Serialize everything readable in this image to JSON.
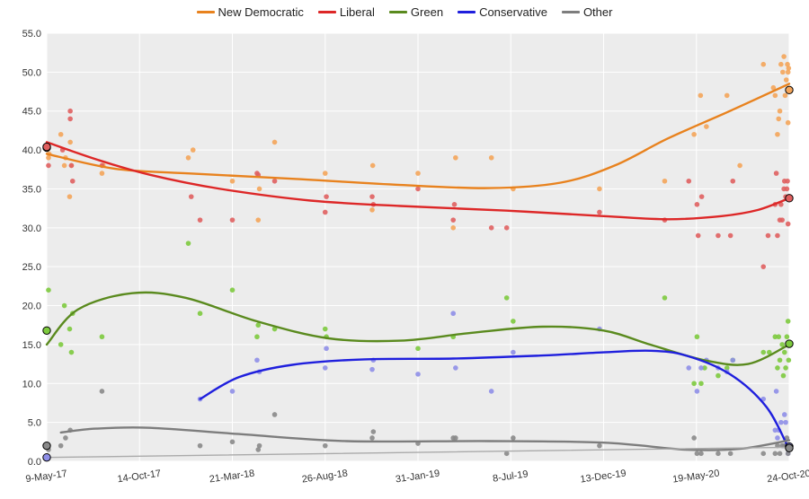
{
  "chart_data": {
    "type": "scatter",
    "title": "",
    "xlabel": "",
    "ylabel": "",
    "ylim": [
      0,
      55
    ],
    "xlim": [
      "2017-05-09",
      "2020-10-24"
    ],
    "grid": true,
    "legend_position": "top-center",
    "y_ticks": [
      "0.0",
      "5.0",
      "10.0",
      "15.0",
      "20.0",
      "25.0",
      "30.0",
      "35.0",
      "40.0",
      "45.0",
      "50.0",
      "55.0"
    ],
    "x_ticks": [
      {
        "date": "2017-05-09",
        "label": "9-May-17"
      },
      {
        "date": "2017-10-14",
        "label": "14-Oct-17"
      },
      {
        "date": "2018-03-21",
        "label": "21-Mar-18"
      },
      {
        "date": "2018-08-26",
        "label": "26-Aug-18"
      },
      {
        "date": "2019-01-31",
        "label": "31-Jan-19"
      },
      {
        "date": "2019-07-08",
        "label": "8-Jul-19"
      },
      {
        "date": "2019-12-13",
        "label": "13-Dec-19"
      },
      {
        "date": "2020-05-19",
        "label": "19-May-20"
      },
      {
        "date": "2020-10-24",
        "label": "24-Oct-20"
      }
    ],
    "series": [
      {
        "name": "New Democratic",
        "color": "#e8821e",
        "point_color": "#f4a55a",
        "election_values": [
          40.3,
          47.7
        ],
        "trend": [
          [
            "2017-05-09",
            39.5
          ],
          [
            "2017-09-01",
            37.6
          ],
          [
            "2018-01-01",
            37.0
          ],
          [
            "2018-07-01",
            36.3
          ],
          [
            "2019-01-01",
            35.5
          ],
          [
            "2019-06-01",
            35.1
          ],
          [
            "2019-10-01",
            35.8
          ],
          [
            "2020-01-01",
            38.0
          ],
          [
            "2020-04-01",
            41.5
          ],
          [
            "2020-07-15",
            45.0
          ],
          [
            "2020-10-24",
            48.5
          ]
        ],
        "points": [
          [
            "2017-05-12",
            39
          ],
          [
            "2017-05-13",
            39.5
          ],
          [
            "2017-06-02",
            42
          ],
          [
            "2017-06-08",
            38
          ],
          [
            "2017-06-10",
            39
          ],
          [
            "2017-06-18",
            41
          ],
          [
            "2017-06-17",
            34
          ],
          [
            "2017-06-20",
            38
          ],
          [
            "2017-08-11",
            37
          ],
          [
            "2017-08-13",
            38
          ],
          [
            "2018-01-05",
            39
          ],
          [
            "2018-01-13",
            40
          ],
          [
            "2018-03-21",
            36
          ],
          [
            "2018-05-04",
            31
          ],
          [
            "2018-05-06",
            35
          ],
          [
            "2018-06-01",
            41
          ],
          [
            "2018-08-26",
            37
          ],
          [
            "2018-11-15",
            38
          ],
          [
            "2018-11-14",
            32.3
          ],
          [
            "2019-01-31",
            37
          ],
          [
            "2019-04-05",
            39
          ],
          [
            "2019-04-01",
            30
          ],
          [
            "2019-06-05",
            39
          ],
          [
            "2019-07-12",
            35
          ],
          [
            "2019-12-06",
            35
          ],
          [
            "2020-03-26",
            36
          ],
          [
            "2020-05-15",
            42
          ],
          [
            "2020-05-26",
            47
          ],
          [
            "2020-06-05",
            43
          ],
          [
            "2020-07-10",
            47
          ],
          [
            "2020-08-01",
            38
          ],
          [
            "2020-09-10",
            51
          ],
          [
            "2020-09-27",
            48
          ],
          [
            "2020-09-30",
            47
          ],
          [
            "2020-10-04",
            42
          ],
          [
            "2020-10-06",
            44
          ],
          [
            "2020-10-08",
            45
          ],
          [
            "2020-10-10",
            51
          ],
          [
            "2020-10-13",
            50
          ],
          [
            "2020-10-15",
            52
          ],
          [
            "2020-10-17",
            47
          ],
          [
            "2020-10-19",
            49
          ],
          [
            "2020-10-21",
            51
          ],
          [
            "2020-10-22",
            50
          ],
          [
            "2020-10-22",
            43.5
          ],
          [
            "2020-10-23",
            50.5
          ]
        ]
      },
      {
        "name": "Liberal",
        "color": "#dd2727",
        "point_color": "#e06060",
        "election_values": [
          40.4,
          33.8
        ],
        "trend": [
          [
            "2017-05-09",
            41.0
          ],
          [
            "2017-08-01",
            38.8
          ],
          [
            "2017-11-01",
            36.8
          ],
          [
            "2018-03-01",
            35.0
          ],
          [
            "2018-08-01",
            33.5
          ],
          [
            "2019-01-01",
            32.8
          ],
          [
            "2019-07-01",
            32.2
          ],
          [
            "2019-12-13",
            31.5
          ],
          [
            "2020-04-01",
            31.1
          ],
          [
            "2020-07-01",
            31.5
          ],
          [
            "2020-09-01",
            32.3
          ],
          [
            "2020-10-24",
            33.8
          ]
        ],
        "points": [
          [
            "2017-05-12",
            38
          ],
          [
            "2017-06-05",
            40
          ],
          [
            "2017-06-18",
            44
          ],
          [
            "2017-06-18",
            45
          ],
          [
            "2017-06-20",
            38
          ],
          [
            "2017-06-22",
            36
          ],
          [
            "2017-08-11",
            38
          ],
          [
            "2018-01-10",
            34
          ],
          [
            "2018-01-25",
            31
          ],
          [
            "2018-03-21",
            31
          ],
          [
            "2018-05-02",
            37
          ],
          [
            "2018-05-04",
            36.8
          ],
          [
            "2018-06-01",
            36
          ],
          [
            "2018-08-26",
            32
          ],
          [
            "2018-08-28",
            34
          ],
          [
            "2018-11-14",
            34
          ],
          [
            "2018-11-16",
            33
          ],
          [
            "2019-01-31",
            35
          ],
          [
            "2019-04-01",
            31
          ],
          [
            "2019-04-03",
            33
          ],
          [
            "2019-06-05",
            30
          ],
          [
            "2019-07-01",
            30
          ],
          [
            "2019-12-06",
            32
          ],
          [
            "2020-03-26",
            31
          ],
          [
            "2020-05-06",
            36
          ],
          [
            "2020-05-20",
            33
          ],
          [
            "2020-05-22",
            29
          ],
          [
            "2020-05-28",
            34
          ],
          [
            "2020-06-25",
            29
          ],
          [
            "2020-07-16",
            29
          ],
          [
            "2020-07-20",
            36
          ],
          [
            "2020-09-10",
            25
          ],
          [
            "2020-09-18",
            29
          ],
          [
            "2020-09-30",
            33
          ],
          [
            "2020-10-02",
            37
          ],
          [
            "2020-10-04",
            29
          ],
          [
            "2020-10-08",
            31
          ],
          [
            "2020-10-10",
            33
          ],
          [
            "2020-10-12",
            31
          ],
          [
            "2020-10-15",
            35
          ],
          [
            "2020-10-16",
            36
          ],
          [
            "2020-10-18",
            34
          ],
          [
            "2020-10-20",
            35
          ],
          [
            "2020-10-21",
            36
          ],
          [
            "2020-10-22",
            30.5
          ]
        ]
      },
      {
        "name": "Green",
        "color": "#5a8a1e",
        "point_color": "#7dca3e",
        "election_values": [
          16.8,
          15.1
        ],
        "trend": [
          [
            "2017-05-09",
            15.0
          ],
          [
            "2017-07-01",
            19.5
          ],
          [
            "2017-10-01",
            21.6
          ],
          [
            "2018-01-01",
            21.0
          ],
          [
            "2018-05-01",
            18.0
          ],
          [
            "2018-09-01",
            15.8
          ],
          [
            "2019-01-01",
            15.5
          ],
          [
            "2019-05-01",
            16.5
          ],
          [
            "2019-09-01",
            17.3
          ],
          [
            "2019-12-13",
            16.8
          ],
          [
            "2020-03-01",
            15.0
          ],
          [
            "2020-06-01",
            13.0
          ],
          [
            "2020-08-15",
            12.5
          ],
          [
            "2020-10-24",
            15.0
          ]
        ],
        "points": [
          [
            "2017-05-12",
            22
          ],
          [
            "2017-06-02",
            15
          ],
          [
            "2017-06-08",
            20
          ],
          [
            "2017-06-17",
            17
          ],
          [
            "2017-06-20",
            14
          ],
          [
            "2017-06-22",
            19
          ],
          [
            "2017-08-11",
            16
          ],
          [
            "2018-01-05",
            28
          ],
          [
            "2018-01-25",
            19
          ],
          [
            "2018-03-21",
            22
          ],
          [
            "2018-05-02",
            16
          ],
          [
            "2018-05-04",
            17.5
          ],
          [
            "2018-06-01",
            17
          ],
          [
            "2018-08-26",
            17
          ],
          [
            "2018-08-28",
            16
          ],
          [
            "2019-01-31",
            14.5
          ],
          [
            "2019-04-01",
            16
          ],
          [
            "2019-07-01",
            21
          ],
          [
            "2019-07-12",
            18
          ],
          [
            "2020-03-26",
            21
          ],
          [
            "2020-05-15",
            10
          ],
          [
            "2020-05-20",
            16
          ],
          [
            "2020-05-27",
            10
          ],
          [
            "2020-06-02",
            12
          ],
          [
            "2020-06-25",
            11
          ],
          [
            "2020-07-10",
            12
          ],
          [
            "2020-07-20",
            13
          ],
          [
            "2020-09-10",
            14
          ],
          [
            "2020-09-20",
            14
          ],
          [
            "2020-09-30",
            16
          ],
          [
            "2020-10-04",
            12
          ],
          [
            "2020-10-06",
            16
          ],
          [
            "2020-10-08",
            13
          ],
          [
            "2020-10-12",
            15
          ],
          [
            "2020-10-14",
            11
          ],
          [
            "2020-10-16",
            14
          ],
          [
            "2020-10-18",
            12
          ],
          [
            "2020-10-20",
            16
          ],
          [
            "2020-10-22",
            18
          ],
          [
            "2020-10-23",
            13
          ]
        ]
      },
      {
        "name": "Conservative",
        "color": "#1f1fdd",
        "point_color": "#8f8fe8",
        "election_values": [
          0.5,
          1.9
        ],
        "trend": [
          [
            "2018-01-25",
            8.0
          ],
          [
            "2018-04-01",
            10.8
          ],
          [
            "2018-07-01",
            12.4
          ],
          [
            "2018-11-01",
            13.1
          ],
          [
            "2019-04-01",
            13.2
          ],
          [
            "2019-09-01",
            13.6
          ],
          [
            "2019-12-13",
            14.0
          ],
          [
            "2020-03-01",
            14.2
          ],
          [
            "2020-05-01",
            13.6
          ],
          [
            "2020-07-15",
            11.2
          ],
          [
            "2020-09-15",
            7.0
          ],
          [
            "2020-10-24",
            1.5
          ]
        ],
        "points": [
          [
            "2018-01-25",
            8
          ],
          [
            "2018-03-21",
            9
          ],
          [
            "2018-05-02",
            13
          ],
          [
            "2018-05-06",
            11.5
          ],
          [
            "2018-08-26",
            12
          ],
          [
            "2018-08-28",
            14.5
          ],
          [
            "2018-11-14",
            11.8
          ],
          [
            "2018-11-16",
            13
          ],
          [
            "2019-01-31",
            11.2
          ],
          [
            "2019-04-01",
            19
          ],
          [
            "2019-04-05",
            12
          ],
          [
            "2019-06-05",
            9
          ],
          [
            "2019-07-12",
            14
          ],
          [
            "2019-12-06",
            17
          ],
          [
            "2020-05-06",
            12
          ],
          [
            "2020-05-20",
            9
          ],
          [
            "2020-05-27",
            12
          ],
          [
            "2020-06-05",
            13
          ],
          [
            "2020-06-25",
            12
          ],
          [
            "2020-07-10",
            11.5
          ],
          [
            "2020-07-20",
            13
          ],
          [
            "2020-09-10",
            8
          ],
          [
            "2020-09-30",
            4
          ],
          [
            "2020-10-02",
            9
          ],
          [
            "2020-10-04",
            3
          ],
          [
            "2020-10-06",
            4
          ],
          [
            "2020-10-10",
            5
          ],
          [
            "2020-10-14",
            2
          ],
          [
            "2020-10-16",
            6
          ],
          [
            "2020-10-18",
            5
          ],
          [
            "2020-10-21",
            2
          ],
          [
            "2020-10-22",
            1
          ]
        ]
      },
      {
        "name": "Other",
        "color": "#7d7d7d",
        "point_color": "#8a8a8a",
        "election_values": [
          2.0,
          1.7
        ],
        "trend": [
          [
            "2017-06-02",
            3.7
          ],
          [
            "2017-08-01",
            4.2
          ],
          [
            "2017-11-01",
            4.3
          ],
          [
            "2018-04-01",
            3.5
          ],
          [
            "2018-10-01",
            2.6
          ],
          [
            "2019-06-01",
            2.6
          ],
          [
            "2019-12-13",
            2.4
          ],
          [
            "2020-05-01",
            1.5
          ],
          [
            "2020-08-01",
            1.6
          ],
          [
            "2020-10-24",
            2.7
          ]
        ],
        "points": [
          [
            "2017-05-12",
            1.5
          ],
          [
            "2017-06-02",
            2
          ],
          [
            "2017-06-10",
            3
          ],
          [
            "2017-06-18",
            4
          ],
          [
            "2017-08-11",
            9
          ],
          [
            "2018-01-25",
            2
          ],
          [
            "2018-03-21",
            2.5
          ],
          [
            "2018-05-04",
            1.5
          ],
          [
            "2018-05-06",
            2
          ],
          [
            "2018-06-01",
            6
          ],
          [
            "2018-08-26",
            2
          ],
          [
            "2018-11-14",
            3
          ],
          [
            "2018-11-16",
            3.8
          ],
          [
            "2019-01-31",
            2.3
          ],
          [
            "2019-04-01",
            3
          ],
          [
            "2019-04-05",
            3
          ],
          [
            "2019-07-01",
            1
          ],
          [
            "2019-07-12",
            3
          ],
          [
            "2019-12-06",
            2
          ],
          [
            "2020-05-15",
            3
          ],
          [
            "2020-05-20",
            1
          ],
          [
            "2020-05-27",
            1
          ],
          [
            "2020-06-25",
            1
          ],
          [
            "2020-07-16",
            1
          ],
          [
            "2020-09-10",
            1
          ],
          [
            "2020-09-30",
            1
          ],
          [
            "2020-10-04",
            2
          ],
          [
            "2020-10-08",
            1
          ],
          [
            "2020-10-12",
            2
          ],
          [
            "2020-10-16",
            2
          ],
          [
            "2020-10-20",
            3
          ],
          [
            "2020-10-22",
            1
          ]
        ]
      },
      {
        "name": "",
        "color": "#aaaaaa",
        "point_color": "#aaaaaa",
        "show_in_legend": false,
        "trend": [
          [
            "2017-05-09",
            0.5
          ],
          [
            "2020-10-24",
            1.8
          ]
        ],
        "points": []
      }
    ]
  }
}
